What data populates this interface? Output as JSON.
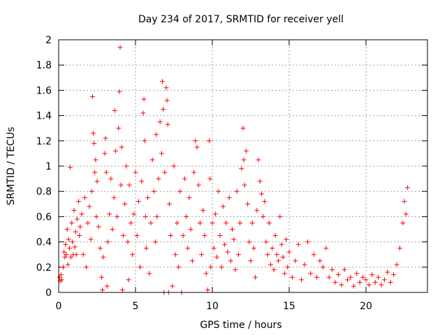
{
  "chart_data": {
    "type": "scatter",
    "title": "Day 234 of 2017, SRMTID for receiver yell",
    "xlabel": "GPS time / hours",
    "ylabel": "SRMTID / TECUs",
    "xlim": [
      0,
      24
    ],
    "ylim": [
      0,
      2
    ],
    "xticks": [
      0,
      5,
      10,
      15,
      20
    ],
    "xtick_labels": [
      "0",
      "5",
      "10",
      "15",
      "20"
    ],
    "yticks": [
      0,
      0.2,
      0.4,
      0.6,
      0.8,
      1,
      1.2,
      1.4,
      1.6,
      1.8,
      2
    ],
    "ytick_labels": [
      "0",
      "0.2",
      "0.4",
      "0.6",
      "0.8",
      "1",
      "1.2",
      "1.4",
      "1.6",
      "1.8",
      "2"
    ],
    "grid": true,
    "marker": "+",
    "color": "#ff0000",
    "series": [
      {
        "name": "SRMTID",
        "points": [
          [
            0.05,
            0.12
          ],
          [
            0.1,
            0.09
          ],
          [
            0.15,
            0.14
          ],
          [
            0.2,
            0.1
          ],
          [
            0.3,
            0.2
          ],
          [
            0.35,
            0.32
          ],
          [
            0.4,
            0.28
          ],
          [
            0.45,
            0.38
          ],
          [
            0.5,
            0.3
          ],
          [
            0.55,
            0.5
          ],
          [
            0.6,
            0.22
          ],
          [
            0.65,
            0.42
          ],
          [
            0.7,
            0.35
          ],
          [
            0.75,
            0.99
          ],
          [
            0.8,
            0.28
          ],
          [
            0.85,
            0.55
          ],
          [
            0.9,
            0.4
          ],
          [
            0.95,
            0.3
          ],
          [
            1.0,
            0.65
          ],
          [
            1.05,
            0.36
          ],
          [
            1.1,
            0.48
          ],
          [
            1.15,
            0.3
          ],
          [
            1.2,
            0.58
          ],
          [
            1.3,
            0.72
          ],
          [
            1.35,
            0.45
          ],
          [
            1.4,
            0.52
          ],
          [
            1.5,
            0.62
          ],
          [
            1.6,
            0.3
          ],
          [
            1.7,
            0.75
          ],
          [
            1.8,
            0.2
          ],
          [
            1.9,
            0.55
          ],
          [
            2.0,
            0.68
          ],
          [
            2.1,
            0.42
          ],
          [
            2.15,
            0.8
          ],
          [
            2.2,
            1.55
          ],
          [
            2.25,
            1.26
          ],
          [
            2.3,
            1.18
          ],
          [
            2.35,
            0.95
          ],
          [
            2.4,
            1.05
          ],
          [
            2.45,
            0.6
          ],
          [
            2.5,
            0.88
          ],
          [
            2.6,
            0.52
          ],
          [
            2.7,
            0.35
          ],
          [
            2.8,
            0.12
          ],
          [
            2.85,
            0.02
          ],
          [
            2.9,
            0.28
          ],
          [
            3.0,
            1.1
          ],
          [
            3.05,
            1.22
          ],
          [
            3.1,
            0.95
          ],
          [
            3.15,
            0.05
          ],
          [
            3.2,
            0.4
          ],
          [
            3.3,
            0.62
          ],
          [
            3.4,
            0.9
          ],
          [
            3.5,
            0.5
          ],
          [
            3.6,
            0.75
          ],
          [
            3.65,
            1.44
          ],
          [
            3.7,
            1.12
          ],
          [
            3.8,
            0.6
          ],
          [
            3.9,
            1.3
          ],
          [
            3.95,
            1.59
          ],
          [
            4.0,
            1.94
          ],
          [
            4.05,
            0.85
          ],
          [
            4.1,
            1.15
          ],
          [
            4.15,
            0.02
          ],
          [
            4.2,
            0.45
          ],
          [
            4.3,
            0.7
          ],
          [
            4.4,
            1.0
          ],
          [
            4.5,
            0.4
          ],
          [
            4.55,
            0.1
          ],
          [
            4.6,
            0.85
          ],
          [
            4.7,
            0.55
          ],
          [
            4.8,
            0.3
          ],
          [
            4.9,
            0.62
          ],
          [
            5.0,
            0.95
          ],
          [
            5.1,
            0.45
          ],
          [
            5.2,
            0.72
          ],
          [
            5.3,
            0.2
          ],
          [
            5.4,
            0.88
          ],
          [
            5.5,
            1.42
          ],
          [
            5.55,
            1.53
          ],
          [
            5.6,
            1.2
          ],
          [
            5.65,
            0.6
          ],
          [
            5.7,
            0.35
          ],
          [
            5.8,
            0.75
          ],
          [
            5.9,
            0.15
          ],
          [
            6.0,
            0.55
          ],
          [
            6.1,
            1.05
          ],
          [
            6.2,
            0.8
          ],
          [
            6.3,
            0.4
          ],
          [
            6.35,
            1.25
          ],
          [
            6.4,
            0.6
          ],
          [
            6.5,
            0.9
          ],
          [
            6.6,
            1.35
          ],
          [
            6.7,
            1.1
          ],
          [
            6.75,
            1.67
          ],
          [
            6.8,
            1.45
          ],
          [
            6.85,
            0.0
          ],
          [
            6.9,
            0.95
          ],
          [
            7.0,
            1.62
          ],
          [
            7.05,
            1.52
          ],
          [
            7.1,
            1.33
          ],
          [
            7.15,
            0.0
          ],
          [
            7.2,
            0.7
          ],
          [
            7.3,
            0.45
          ],
          [
            7.4,
            0.05
          ],
          [
            7.5,
            1.0
          ],
          [
            7.6,
            0.3
          ],
          [
            7.7,
            0.55
          ],
          [
            7.8,
            0.2
          ],
          [
            7.9,
            0.8
          ],
          [
            8.0,
            0.0
          ],
          [
            8.1,
            0.45
          ],
          [
            8.2,
            0.9
          ],
          [
            8.3,
            0.6
          ],
          [
            8.4,
            0.35
          ],
          [
            8.5,
            0.75
          ],
          [
            8.6,
            0.5
          ],
          [
            8.7,
            0.25
          ],
          [
            8.8,
            0.95
          ],
          [
            8.9,
            1.2
          ],
          [
            9.0,
            1.15
          ],
          [
            9.1,
            0.85
          ],
          [
            9.2,
            0.55
          ],
          [
            9.3,
            0.3
          ],
          [
            9.4,
            0.65
          ],
          [
            9.5,
            0.45
          ],
          [
            9.6,
            0.15
          ],
          [
            9.7,
            0.02
          ],
          [
            9.8,
            1.2
          ],
          [
            9.85,
            0.9
          ],
          [
            9.9,
            0.2
          ],
          [
            10.0,
            0.55
          ],
          [
            10.1,
            0.35
          ],
          [
            10.2,
            0.62
          ],
          [
            10.3,
            0.28
          ],
          [
            10.4,
            0.8
          ],
          [
            10.5,
            0.45
          ],
          [
            10.6,
            0.2
          ],
          [
            10.7,
            0.68
          ],
          [
            10.8,
            0.38
          ],
          [
            10.9,
            0.55
          ],
          [
            11.0,
            0.32
          ],
          [
            11.1,
            0.75
          ],
          [
            11.2,
            0.25
          ],
          [
            11.3,
            0.5
          ],
          [
            11.4,
            0.42
          ],
          [
            11.5,
            0.18
          ],
          [
            11.6,
            0.8
          ],
          [
            11.7,
            0.3
          ],
          [
            11.8,
            0.55
          ],
          [
            11.9,
            0.98
          ],
          [
            12.0,
            1.3
          ],
          [
            12.05,
            1.05
          ],
          [
            12.1,
            0.85
          ],
          [
            12.2,
            1.12
          ],
          [
            12.3,
            0.7
          ],
          [
            12.4,
            0.4
          ],
          [
            12.5,
            0.25
          ],
          [
            12.6,
            0.55
          ],
          [
            12.7,
            0.35
          ],
          [
            12.8,
            0.12
          ],
          [
            12.9,
            0.65
          ],
          [
            13.0,
            1.05
          ],
          [
            13.1,
            0.88
          ],
          [
            13.2,
            0.78
          ],
          [
            13.3,
            0.6
          ],
          [
            13.4,
            0.72
          ],
          [
            13.5,
            0.4
          ],
          [
            13.6,
            0.3
          ],
          [
            13.7,
            0.55
          ],
          [
            13.8,
            0.22
          ],
          [
            13.9,
            0.35
          ],
          [
            14.0,
            0.18
          ],
          [
            14.1,
            0.45
          ],
          [
            14.2,
            0.3
          ],
          [
            14.3,
            0.25
          ],
          [
            14.4,
            0.6
          ],
          [
            14.5,
            0.38
          ],
          [
            14.6,
            0.28
          ],
          [
            14.7,
            0.15
          ],
          [
            14.8,
            0.42
          ],
          [
            14.9,
            0.2
          ],
          [
            15.0,
            0.32
          ],
          [
            15.2,
            0.12
          ],
          [
            15.4,
            0.25
          ],
          [
            15.6,
            0.38
          ],
          [
            15.8,
            0.1
          ],
          [
            16.0,
            0.22
          ],
          [
            16.2,
            0.4
          ],
          [
            16.4,
            0.15
          ],
          [
            16.6,
            0.3
          ],
          [
            16.8,
            0.12
          ],
          [
            17.0,
            0.25
          ],
          [
            17.2,
            0.2
          ],
          [
            17.4,
            0.35
          ],
          [
            17.6,
            0.12
          ],
          [
            17.8,
            0.18
          ],
          [
            18.0,
            0.08
          ],
          [
            18.2,
            0.14
          ],
          [
            18.4,
            0.06
          ],
          [
            18.6,
            0.18
          ],
          [
            18.8,
            0.1
          ],
          [
            19.0,
            0.12
          ],
          [
            19.2,
            0.05
          ],
          [
            19.4,
            0.15
          ],
          [
            19.6,
            0.08
          ],
          [
            19.8,
            0.12
          ],
          [
            20.0,
            0.1
          ],
          [
            20.2,
            0.06
          ],
          [
            20.4,
            0.14
          ],
          [
            20.6,
            0.08
          ],
          [
            20.8,
            0.12
          ],
          [
            21.0,
            0.06
          ],
          [
            21.2,
            0.1
          ],
          [
            21.4,
            0.16
          ],
          [
            21.6,
            0.08
          ],
          [
            21.8,
            0.14
          ],
          [
            22.0,
            0.22
          ],
          [
            22.2,
            0.35
          ],
          [
            22.4,
            0.55
          ],
          [
            22.5,
            0.72
          ],
          [
            22.6,
            0.62
          ],
          [
            22.7,
            0.83
          ]
        ]
      }
    ]
  }
}
